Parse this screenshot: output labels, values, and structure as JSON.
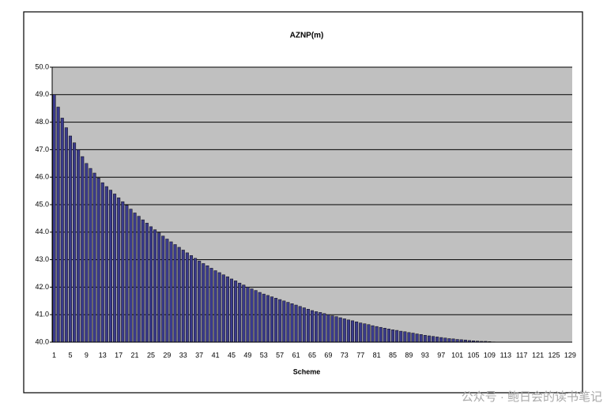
{
  "chart_data": {
    "type": "bar",
    "title": "AZNP(m)",
    "x_label": "Scheme",
    "categories": [
      "1",
      null,
      null,
      null,
      "5",
      null,
      null,
      null,
      "9",
      null,
      null,
      null,
      "13",
      null,
      null,
      null,
      "17",
      null,
      null,
      null,
      "21",
      null,
      null,
      null,
      "25",
      null,
      null,
      null,
      "29",
      null,
      null,
      null,
      "33",
      null,
      null,
      null,
      "37",
      null,
      null,
      null,
      "41",
      null,
      null,
      null,
      "45",
      null,
      null,
      null,
      "49",
      null,
      null,
      null,
      "53",
      null,
      null,
      null,
      "57",
      null,
      null,
      null,
      "61",
      null,
      null,
      null,
      "65",
      null,
      null,
      null,
      "69",
      null,
      null,
      null,
      "73",
      null,
      null,
      null,
      "77",
      null,
      null,
      null,
      "81",
      null,
      null,
      null,
      "85",
      null,
      null,
      null,
      "89",
      null,
      null,
      null,
      "93",
      null,
      null,
      null,
      "97",
      null,
      null,
      null,
      "101",
      null,
      null,
      null,
      "105",
      null,
      null,
      null,
      "109",
      null,
      null,
      null,
      "113",
      null,
      null,
      null,
      "117",
      null,
      null,
      null,
      "121",
      null,
      null,
      null,
      "125",
      null,
      null,
      null,
      "129"
    ],
    "values": [
      49.0,
      48.55,
      48.15,
      47.8,
      47.5,
      47.25,
      47.0,
      46.75,
      46.5,
      46.32,
      46.15,
      45.97,
      45.8,
      45.66,
      45.53,
      45.39,
      45.25,
      45.11,
      44.98,
      44.84,
      44.7,
      44.58,
      44.45,
      44.33,
      44.2,
      44.09,
      43.98,
      43.86,
      43.75,
      43.65,
      43.55,
      43.45,
      43.35,
      43.25,
      43.15,
      43.05,
      42.95,
      42.86,
      42.78,
      42.69,
      42.6,
      42.53,
      42.45,
      42.38,
      42.3,
      42.23,
      42.15,
      42.08,
      42.0,
      41.94,
      41.88,
      41.81,
      41.75,
      41.7,
      41.65,
      41.6,
      41.55,
      41.5,
      41.45,
      41.4,
      41.35,
      41.3,
      41.25,
      41.2,
      41.15,
      41.11,
      41.08,
      41.04,
      41.0,
      40.96,
      40.93,
      40.89,
      40.85,
      40.81,
      40.78,
      40.74,
      40.7,
      40.67,
      40.64,
      40.6,
      40.57,
      40.54,
      40.51,
      40.48,
      40.45,
      40.43,
      40.4,
      40.38,
      40.35,
      40.33,
      40.3,
      40.28,
      40.25,
      40.23,
      40.21,
      40.19,
      40.17,
      40.15,
      40.13,
      40.12,
      40.1,
      40.09,
      40.08,
      40.06,
      40.05,
      40.04,
      40.03,
      40.03,
      40.02,
      40.01,
      40.0,
      40.0,
      40.0,
      40.0,
      40.0,
      40.0,
      40.0,
      40.0,
      40.0,
      40.0,
      40.0,
      40.0,
      40.0,
      40.0,
      40.0,
      40.0,
      40.0,
      40.0,
      40.0
    ],
    "color": "#3a3a8c",
    "ylim": [
      40,
      50
    ],
    "yticks": [
      {
        "value": 40,
        "label": "40.0"
      },
      {
        "value": 41,
        "label": "41.0"
      },
      {
        "value": 42,
        "label": "42.0"
      },
      {
        "value": 43,
        "label": "43.0"
      },
      {
        "value": 44,
        "label": "44.0"
      },
      {
        "value": 45,
        "label": "45.0"
      },
      {
        "value": 46,
        "label": "46.0"
      },
      {
        "value": 47,
        "label": "47.0"
      },
      {
        "value": 48,
        "label": "48.0"
      },
      {
        "value": 49,
        "label": "49.0"
      },
      {
        "value": 50,
        "label": "50.0"
      }
    ],
    "grid": true,
    "watermark": "公众号 · 鲍日会的读书笔记"
  }
}
